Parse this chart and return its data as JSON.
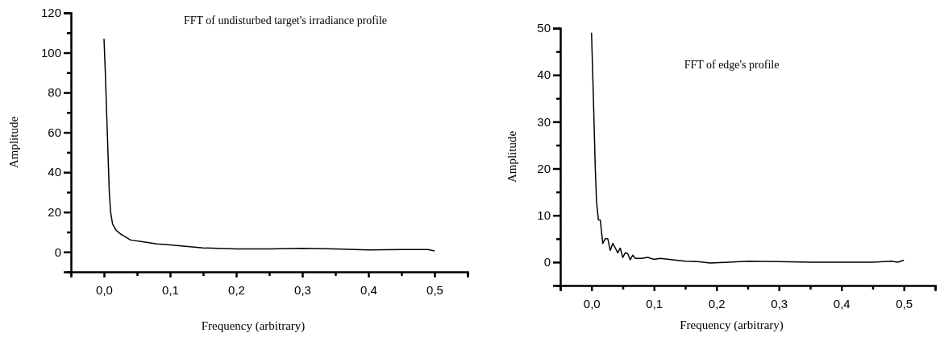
{
  "chart_data": [
    {
      "type": "line",
      "title": "FFT of undisturbed target's irradiance profile",
      "xlabel": "Frequency (arbitrary)",
      "ylabel": "Amplitude",
      "xlim": [
        -0.05,
        0.55
      ],
      "ylim": [
        -10,
        120
      ],
      "xticks": [
        {
          "value": -0.05,
          "label": null
        },
        {
          "value": 0,
          "label": "0,0"
        },
        {
          "value": 0.05,
          "label": null
        },
        {
          "value": 0.1,
          "label": "0,1"
        },
        {
          "value": 0.15,
          "label": null
        },
        {
          "value": 0.2,
          "label": "0,2"
        },
        {
          "value": 0.25,
          "label": null
        },
        {
          "value": 0.3,
          "label": "0,3"
        },
        {
          "value": 0.35,
          "label": null
        },
        {
          "value": 0.4,
          "label": "0,4"
        },
        {
          "value": 0.45,
          "label": null
        },
        {
          "value": 0.5,
          "label": "0,5"
        },
        {
          "value": 0.55,
          "label": null
        }
      ],
      "yticks": [
        {
          "value": -10,
          "label": null
        },
        0,
        {
          "value": 10,
          "label": null
        },
        20,
        {
          "value": 30,
          "label": null
        },
        40,
        {
          "value": 50,
          "label": null
        },
        60,
        {
          "value": 70,
          "label": null
        },
        80,
        {
          "value": 90,
          "label": null
        },
        100,
        {
          "value": 110,
          "label": null
        },
        120
      ],
      "series": [
        {
          "color": "#000000",
          "x": [
            0,
            0.002,
            0.004,
            0.006,
            0.008,
            0.01,
            0.013,
            0.018,
            0.025,
            0.04,
            0.06,
            0.08,
            0.1,
            0.15,
            0.2,
            0.25,
            0.3,
            0.35,
            0.4,
            0.45,
            0.49,
            0.5
          ],
          "values": [
            107,
            90,
            70,
            50,
            30,
            20,
            14,
            11,
            9,
            6,
            5,
            4,
            3.5,
            2,
            1.5,
            1.5,
            1.8,
            1.5,
            1,
            1.2,
            1.2,
            0.5
          ]
        }
      ]
    },
    {
      "type": "line",
      "title": "FFT of edge's profile",
      "xlabel": "Frequency (arbitrary)",
      "ylabel": "Amplitude",
      "xlim": [
        -0.05,
        0.55
      ],
      "ylim": [
        -5,
        50
      ],
      "xticks": [
        {
          "value": -0.05,
          "label": null
        },
        {
          "value": 0,
          "label": "0,0"
        },
        {
          "value": 0.05,
          "label": null
        },
        {
          "value": 0.1,
          "label": "0,1"
        },
        {
          "value": 0.15,
          "label": null
        },
        {
          "value": 0.2,
          "label": "0,2"
        },
        {
          "value": 0.25,
          "label": null
        },
        {
          "value": 0.3,
          "label": "0,3"
        },
        {
          "value": 0.35,
          "label": null
        },
        {
          "value": 0.4,
          "label": "0,4"
        },
        {
          "value": 0.45,
          "label": null
        },
        {
          "value": 0.5,
          "label": "0,5"
        },
        {
          "value": 0.55,
          "label": null
        }
      ],
      "yticks": [
        {
          "value": -5,
          "label": null
        },
        0,
        {
          "value": 5,
          "label": null
        },
        10,
        {
          "value": 15,
          "label": null
        },
        20,
        {
          "value": 25,
          "label": null
        },
        30,
        {
          "value": 35,
          "label": null
        },
        40,
        {
          "value": 45,
          "label": null
        },
        50
      ],
      "series": [
        {
          "color": "#000000",
          "x": [
            0,
            0.003,
            0.006,
            0.008,
            0.011,
            0.014,
            0.018,
            0.022,
            0.026,
            0.03,
            0.034,
            0.038,
            0.042,
            0.046,
            0.05,
            0.054,
            0.058,
            0.062,
            0.066,
            0.07,
            0.08,
            0.09,
            0.1,
            0.11,
            0.13,
            0.15,
            0.17,
            0.19,
            0.22,
            0.25,
            0.3,
            0.35,
            0.4,
            0.45,
            0.48,
            0.49,
            0.5
          ],
          "values": [
            49,
            35,
            20,
            13,
            9,
            9,
            4,
            5,
            5,
            2.5,
            4,
            3,
            2,
            3,
            1,
            2,
            1.8,
            0.5,
            1.5,
            0.8,
            0.8,
            1,
            0.6,
            0.8,
            0.5,
            0.2,
            0.1,
            -0.2,
            0,
            0.2,
            0.1,
            0,
            0,
            0,
            0.2,
            0,
            0.4
          ]
        }
      ]
    }
  ]
}
